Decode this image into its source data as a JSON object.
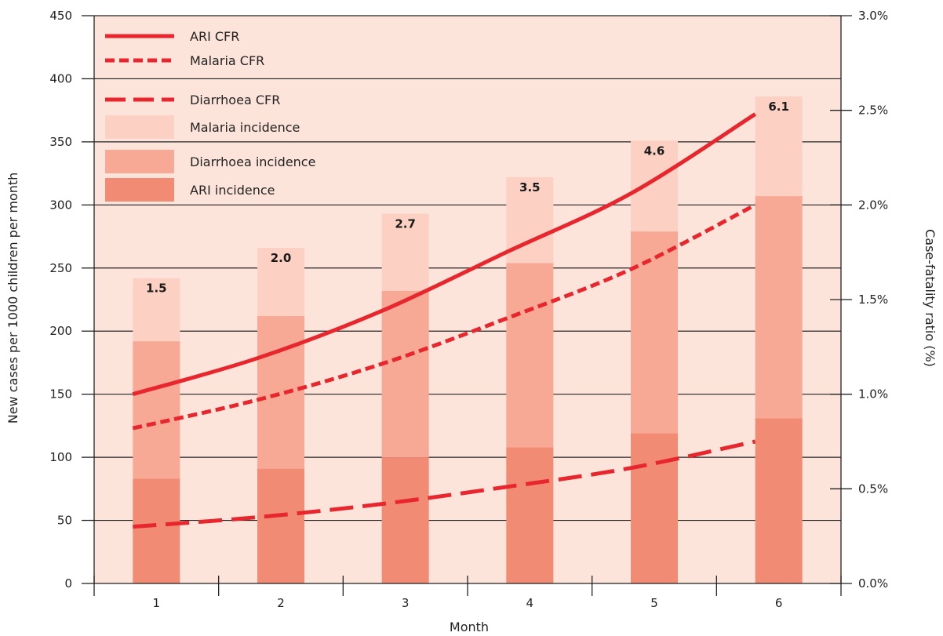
{
  "chart_data": {
    "type": "bar",
    "xlabel": "Month",
    "ylabel": "New cases per 1000 children per month",
    "y2label": "Case-fatality ratio (%)",
    "categories": [
      "1",
      "2",
      "3",
      "4",
      "5",
      "6"
    ],
    "ylim": [
      0,
      450
    ],
    "yticks": [
      "0",
      "50",
      "100",
      "150",
      "200",
      "250",
      "300",
      "350",
      "400",
      "450"
    ],
    "y2lim": [
      0,
      3.0
    ],
    "y2ticks": [
      "0.0%",
      "0.5%",
      "1.0%",
      "1.5%",
      "2.0%",
      "2.5%",
      "3.0%"
    ],
    "grid": true,
    "legend_position": "top-left",
    "stacked": true,
    "bar_series": [
      {
        "name": "ARI incidence",
        "values": [
          83,
          91,
          100,
          108,
          119,
          131
        ],
        "color": "#f28b74"
      },
      {
        "name": "Diarrhoea incidence",
        "values": [
          109,
          121,
          132,
          146,
          160,
          176
        ],
        "color": "#f7a995"
      },
      {
        "name": "Malaria incidence",
        "values": [
          50,
          54,
          61,
          68,
          72,
          79
        ],
        "color": "#fcd1c3"
      }
    ],
    "bar_labels": [
      "1.5",
      "2.0",
      "2.7",
      "3.5",
      "4.6",
      "6.1"
    ],
    "line_series": [
      {
        "name": "ARI CFR",
        "axis": "right",
        "style": "solid",
        "values": [
          1.0,
          1.19,
          1.44,
          1.75,
          2.06,
          2.48
        ],
        "color": "#e8262e"
      },
      {
        "name": "Malaria CFR",
        "axis": "right",
        "style": "dotted",
        "values": [
          0.82,
          0.97,
          1.16,
          1.4,
          1.66,
          2.0
        ],
        "color": "#e8262e"
      },
      {
        "name": "Diarrhoea CFR",
        "axis": "right",
        "style": "dashed",
        "values": [
          0.3,
          0.35,
          0.42,
          0.51,
          0.61,
          0.75
        ],
        "color": "#e8262e"
      }
    ],
    "legend": [
      "ARI CFR",
      "Malaria CFR",
      "Diarrhoea CFR",
      "Malaria incidence",
      "Diarrhoea incidence",
      "ARI incidence"
    ],
    "plot_background": "#fde4da"
  }
}
